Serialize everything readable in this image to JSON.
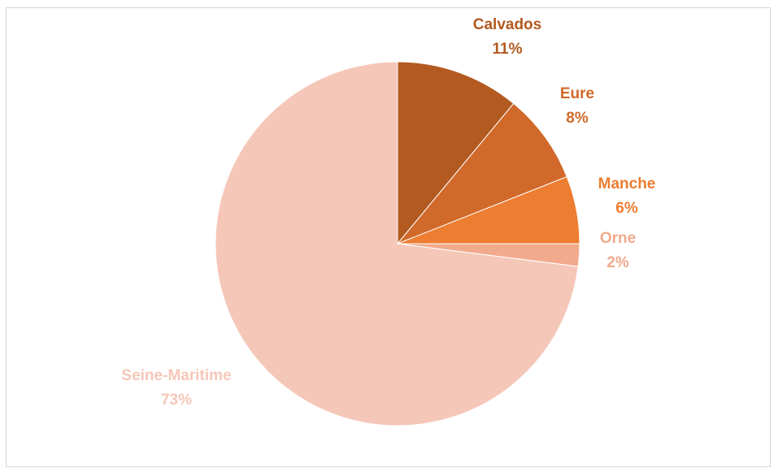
{
  "chart_data": {
    "type": "pie",
    "title": "",
    "start_angle_deg": 0,
    "direction": "clockwise",
    "legend": "none",
    "slices": [
      {
        "name": "Calvados",
        "value": 11,
        "label": "11%",
        "color": "#b25a20"
      },
      {
        "name": "Eure",
        "value": 8,
        "label": "8%",
        "color": "#d0692a"
      },
      {
        "name": "Manche",
        "value": 6,
        "label": "6%",
        "color": "#ed7d31"
      },
      {
        "name": "Orne",
        "value": 2,
        "label": "2%",
        "color": "#f2aa8c"
      },
      {
        "name": "Seine-Maritime",
        "value": 73,
        "label": "73%",
        "color": "#f5c7b8"
      }
    ]
  }
}
